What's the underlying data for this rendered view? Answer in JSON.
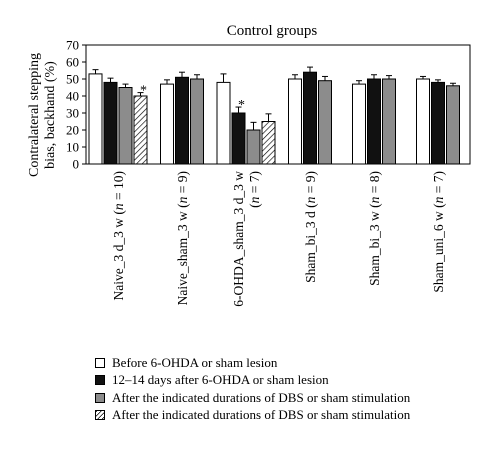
{
  "chart_data": {
    "type": "bar",
    "title": "Control groups",
    "ylabel_lines": [
      "Contralateral stepping",
      "bias, backhand (%)"
    ],
    "ylim": [
      0,
      70
    ],
    "yticks": [
      "0",
      "10",
      "20",
      "30",
      "40",
      "50",
      "60",
      "70"
    ],
    "grid": false,
    "legend_position": "bottom",
    "colors": {
      "white": "#ffffff",
      "black": "#111111",
      "gray": "#8c8c8c",
      "hatch": "#000000"
    },
    "groups": [
      {
        "label_parts": [
          {
            "t": "Naive_3 d_3 w ("
          },
          {
            "t": "n",
            "i": true
          },
          {
            "t": " = 10)"
          }
        ],
        "bars": [
          {
            "value": 53,
            "error": 2.5,
            "style": "white"
          },
          {
            "value": 48,
            "error": 2.5,
            "style": "black"
          },
          {
            "value": 45,
            "error": 2,
            "style": "gray"
          },
          {
            "value": 40,
            "error": 2,
            "style": "hatch",
            "marker": "*"
          }
        ]
      },
      {
        "label_parts": [
          {
            "t": "Naive_sham_3 w ("
          },
          {
            "t": "n",
            "i": true
          },
          {
            "t": " = 9)"
          }
        ],
        "bars": [
          {
            "value": 47,
            "error": 2.5,
            "style": "white"
          },
          {
            "value": 51,
            "error": 3,
            "style": "black"
          },
          {
            "value": 50,
            "error": 2.5,
            "style": "gray"
          }
        ]
      },
      {
        "label_parts": [
          {
            "t": "6-OHDA_sham_3 d_3 w"
          }
        ],
        "label_parts_line2": [
          {
            "t": "("
          },
          {
            "t": "n",
            "i": true
          },
          {
            "t": " = 7)"
          }
        ],
        "bars": [
          {
            "value": 48,
            "error": 5,
            "style": "white"
          },
          {
            "value": 30,
            "error": 3.5,
            "style": "black",
            "marker": "*"
          },
          {
            "value": 20,
            "error": 4.5,
            "style": "gray"
          },
          {
            "value": 25,
            "error": 4.5,
            "style": "hatch"
          }
        ]
      },
      {
        "label_parts": [
          {
            "t": "Sham_bi_3 d ("
          },
          {
            "t": "n",
            "i": true
          },
          {
            "t": " = 9)"
          }
        ],
        "bars": [
          {
            "value": 50,
            "error": 2.5,
            "style": "white"
          },
          {
            "value": 54,
            "error": 3,
            "style": "black"
          },
          {
            "value": 49,
            "error": 2.5,
            "style": "gray"
          }
        ]
      },
      {
        "label_parts": [
          {
            "t": "Sham_bi_3 w ("
          },
          {
            "t": "n",
            "i": true
          },
          {
            "t": " = 8)"
          }
        ],
        "bars": [
          {
            "value": 47,
            "error": 2,
            "style": "white"
          },
          {
            "value": 50,
            "error": 2.5,
            "style": "black"
          },
          {
            "value": 50,
            "error": 2,
            "style": "gray"
          }
        ]
      },
      {
        "label_parts": [
          {
            "t": "Sham_uni_6 w ("
          },
          {
            "t": "n",
            "i": true
          },
          {
            "t": " = 7)"
          }
        ],
        "bars": [
          {
            "value": 50,
            "error": 1.5,
            "style": "white"
          },
          {
            "value": 48,
            "error": 1.5,
            "style": "black"
          },
          {
            "value": 46,
            "error": 1.5,
            "style": "gray"
          }
        ]
      }
    ]
  },
  "legend": {
    "items": [
      {
        "label": "Before 6-OHDA or sham lesion",
        "style": "white"
      },
      {
        "label": "12–14 days after 6-OHDA or sham lesion",
        "style": "black"
      },
      {
        "label": "After the indicated durations of DBS or sham stimulation",
        "style": "gray"
      },
      {
        "label": "After the indicated durations of DBS or sham stimulation",
        "style": "hatch"
      }
    ]
  }
}
